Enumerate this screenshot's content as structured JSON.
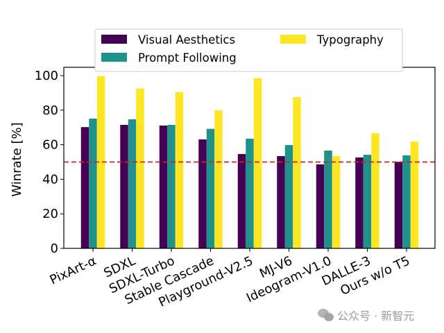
{
  "chart_data": {
    "type": "bar",
    "title": "",
    "xlabel": "",
    "ylabel": "Winrate [%]",
    "ylim": [
      0,
      105
    ],
    "yticks": [
      0,
      20,
      40,
      60,
      80,
      100
    ],
    "grid": false,
    "legend_position": "top",
    "reference_line": {
      "y": 50,
      "style": "dashed",
      "color": "#c0282a"
    },
    "categories": [
      "PixArt-α",
      "SDXL",
      "SDXL-Turbo",
      "Stable Cascade",
      "Playground-V2.5",
      "MJ-V6",
      "Ideogram-V1.0",
      "DALLE-3",
      "Ours w/o T5"
    ],
    "series": [
      {
        "name": "Visual Aesthetics",
        "color": "#440154",
        "values": [
          70.2,
          71.5,
          71.1,
          63.1,
          54.6,
          53.4,
          48.6,
          52.6,
          50.1
        ]
      },
      {
        "name": "Prompt Following",
        "color": "#21918c",
        "values": [
          75.1,
          74.7,
          71.5,
          69.2,
          63.5,
          59.8,
          56.6,
          54.2,
          53.8
        ]
      },
      {
        "name": "Typography",
        "color": "#fde725",
        "values": [
          99.6,
          92.6,
          90.5,
          80.0,
          98.5,
          87.6,
          53.5,
          66.7,
          61.8
        ]
      }
    ]
  },
  "watermark": {
    "text": "公众号 · 新智元",
    "icon": "wechat-icon"
  }
}
